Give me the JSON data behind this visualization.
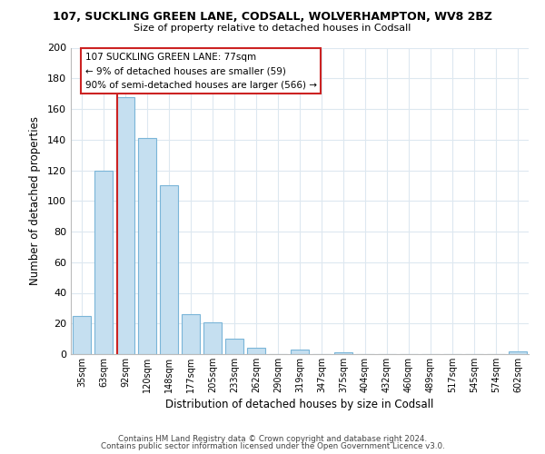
{
  "title1": "107, SUCKLING GREEN LANE, CODSALL, WOLVERHAMPTON, WV8 2BZ",
  "title2": "Size of property relative to detached houses in Codsall",
  "xlabel": "Distribution of detached houses by size in Codsall",
  "ylabel": "Number of detached properties",
  "categories": [
    "35sqm",
    "63sqm",
    "92sqm",
    "120sqm",
    "148sqm",
    "177sqm",
    "205sqm",
    "233sqm",
    "262sqm",
    "290sqm",
    "319sqm",
    "347sqm",
    "375sqm",
    "404sqm",
    "432sqm",
    "460sqm",
    "489sqm",
    "517sqm",
    "545sqm",
    "574sqm",
    "602sqm"
  ],
  "values": [
    25,
    120,
    168,
    141,
    110,
    26,
    21,
    10,
    4,
    0,
    3,
    0,
    1,
    0,
    0,
    0,
    0,
    0,
    0,
    0,
    2
  ],
  "bar_color": "#c5dff0",
  "bar_edge_color": "#7ab5d8",
  "highlight_color": "#cc2222",
  "vline_x": 1.62,
  "ylim": [
    0,
    200
  ],
  "yticks": [
    0,
    20,
    40,
    60,
    80,
    100,
    120,
    140,
    160,
    180,
    200
  ],
  "annotation_title": "107 SUCKLING GREEN LANE: 77sqm",
  "annotation_line1": "← 9% of detached houses are smaller (59)",
  "annotation_line2": "90% of semi-detached houses are larger (566) →",
  "annotation_box_color": "#ffffff",
  "annotation_box_edge": "#cc2222",
  "footer1": "Contains HM Land Registry data © Crown copyright and database right 2024.",
  "footer2": "Contains public sector information licensed under the Open Government Licence v3.0.",
  "background_color": "#ffffff",
  "grid_color": "#dde8f0"
}
